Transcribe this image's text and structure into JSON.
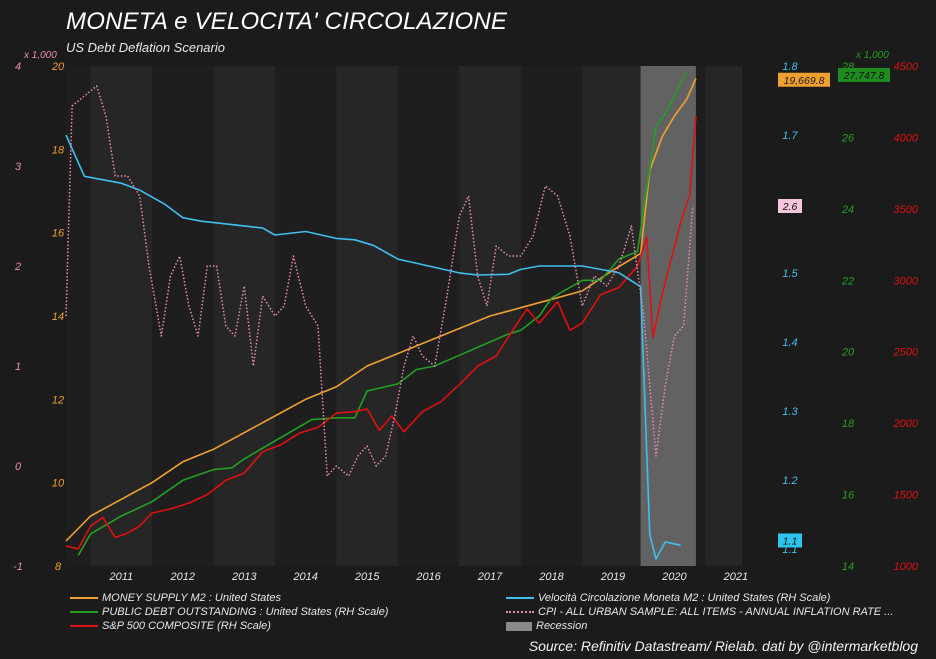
{
  "title": "MONETA e VELOCITA' CIRCOLAZIONE",
  "subtitle": "US Debt Deflation Scenario",
  "source": "Source: Refinitiv Datastream/ Rielab. dati by @intermarketblog",
  "chart_data": {
    "type": "line",
    "x_ticks": [
      "2011",
      "2012",
      "2013",
      "2014",
      "2015",
      "2016",
      "2017",
      "2018",
      "2019",
      "2020",
      "2021"
    ],
    "x_range": [
      2010.6,
      2021.6
    ],
    "recession": {
      "label": "Recession",
      "start": 2019.95,
      "end": 2020.85
    },
    "axes": {
      "cpi": {
        "multiplier": "x 1,000",
        "ticks": [
          "4",
          "3",
          "2",
          "1",
          "0",
          "-1"
        ],
        "range": [
          -1,
          4
        ],
        "color": "#e98bb8"
      },
      "m2": {
        "ticks": [
          "20",
          "18",
          "16",
          "14",
          "12",
          "10",
          "8"
        ],
        "range": [
          8,
          20
        ],
        "color": "#f0a030"
      },
      "velocity": {
        "ticks": [
          "1.8",
          "1.7",
          "1.5",
          "1.4",
          "1.3",
          "1.2",
          "1.1"
        ],
        "range": [
          1.075,
          1.8
        ],
        "color": "#3fbfee"
      },
      "debt": {
        "multiplier": "x 1,000",
        "ticks": [
          "28",
          "26",
          "24",
          "22",
          "20",
          "18",
          "16",
          "14"
        ],
        "range": [
          14,
          28
        ],
        "color": "#22a022"
      },
      "sp500": {
        "ticks": [
          "4500",
          "4000",
          "3500",
          "3000",
          "2500",
          "2000",
          "1500",
          "1000"
        ],
        "range": [
          1000,
          4500
        ],
        "color": "#e01010"
      }
    },
    "badges": {
      "m2": "19,669.8",
      "debt": "27,747.8",
      "cpi": "2.6",
      "velocity": "1.1"
    },
    "series": [
      {
        "key": "m2",
        "name": "MONEY SUPPLY M2 : United States",
        "color": "#f0a030",
        "x": [
          2010.6,
          2011.0,
          2011.5,
          2012.0,
          2012.5,
          2013.0,
          2013.5,
          2014.0,
          2014.5,
          2015.0,
          2015.5,
          2016.0,
          2016.5,
          2017.0,
          2017.5,
          2018.0,
          2018.5,
          2019.0,
          2019.5,
          2019.95,
          2020.1,
          2020.3,
          2020.5,
          2020.7,
          2020.85
        ],
        "y": [
          8.6,
          9.2,
          9.6,
          10.0,
          10.5,
          10.8,
          11.2,
          11.6,
          12.0,
          12.3,
          12.8,
          13.1,
          13.4,
          13.7,
          14.0,
          14.2,
          14.4,
          14.6,
          15.1,
          15.5,
          17.5,
          18.3,
          18.8,
          19.2,
          19.7
        ]
      },
      {
        "key": "debt",
        "name": "PUBLIC DEBT OUTSTANDING : United States (RH Scale)",
        "color": "#22a022",
        "x": [
          2010.8,
          2011.0,
          2011.5,
          2012.0,
          2012.5,
          2013.0,
          2013.3,
          2013.5,
          2014.0,
          2014.3,
          2014.6,
          2015.0,
          2015.3,
          2015.5,
          2016.0,
          2016.3,
          2016.6,
          2017.0,
          2017.4,
          2017.8,
          2018.0,
          2018.3,
          2018.5,
          2019.0,
          2019.3,
          2019.6,
          2019.9,
          2020.0,
          2020.2,
          2020.4,
          2020.6,
          2020.7
        ],
        "y": [
          14.3,
          14.9,
          15.4,
          15.8,
          16.4,
          16.7,
          16.75,
          17.0,
          17.5,
          17.8,
          18.1,
          18.15,
          18.15,
          18.9,
          19.1,
          19.5,
          19.6,
          19.9,
          20.2,
          20.5,
          20.6,
          21.0,
          21.5,
          22.0,
          22.0,
          22.6,
          22.8,
          24.0,
          26.3,
          26.8,
          27.5,
          27.8
        ]
      },
      {
        "key": "sp500",
        "name": "S&P 500 COMPOSITE (RH Scale)",
        "color": "#e01010",
        "x": [
          2010.6,
          2010.8,
          2011.0,
          2011.2,
          2011.4,
          2011.6,
          2011.8,
          2012.0,
          2012.3,
          2012.6,
          2012.9,
          2013.2,
          2013.5,
          2013.8,
          2014.1,
          2014.4,
          2014.7,
          2015.0,
          2015.3,
          2015.5,
          2015.7,
          2015.9,
          2016.1,
          2016.4,
          2016.7,
          2017.0,
          2017.3,
          2017.6,
          2017.9,
          2018.1,
          2018.3,
          2018.6,
          2018.8,
          2019.0,
          2019.3,
          2019.6,
          2019.9,
          2020.05,
          2020.15,
          2020.3,
          2020.45,
          2020.6,
          2020.75,
          2020.85
        ],
        "y": [
          1140,
          1120,
          1280,
          1340,
          1200,
          1230,
          1280,
          1370,
          1400,
          1440,
          1500,
          1600,
          1650,
          1800,
          1850,
          1930,
          1970,
          2070,
          2080,
          2100,
          1950,
          2050,
          1940,
          2080,
          2150,
          2270,
          2400,
          2470,
          2670,
          2800,
          2700,
          2850,
          2650,
          2700,
          2900,
          2950,
          3100,
          3300,
          2600,
          2900,
          3150,
          3400,
          3600,
          4150
        ]
      },
      {
        "key": "velocity",
        "name": "Velocità Circolazione Moneta M2 : United States (RH Scale)",
        "color": "#3fbfee",
        "x": [
          2010.6,
          2010.9,
          2011.5,
          2011.8,
          2012.2,
          2012.5,
          2012.8,
          2013.3,
          2013.8,
          2014.0,
          2014.5,
          2015.0,
          2015.3,
          2015.6,
          2016.0,
          2016.5,
          2017.0,
          2017.3,
          2017.8,
          2018.0,
          2018.3,
          2018.6,
          2019.0,
          2019.3,
          2019.6,
          2019.95,
          2020.1,
          2020.2,
          2020.35,
          2020.6
        ],
        "y": [
          1.7,
          1.64,
          1.63,
          1.62,
          1.6,
          1.58,
          1.575,
          1.57,
          1.565,
          1.555,
          1.56,
          1.55,
          1.548,
          1.54,
          1.52,
          1.51,
          1.5,
          1.497,
          1.498,
          1.505,
          1.51,
          1.51,
          1.51,
          1.505,
          1.5,
          1.48,
          1.12,
          1.085,
          1.11,
          1.105
        ]
      },
      {
        "key": "cpi",
        "name": "CPI - ALL URBAN SAMPLE: ALL ITEMS - ANNUAL INFLATION RATE ...",
        "color": "#e98bb8",
        "x": [
          2010.6,
          2010.7,
          2010.9,
          2011.1,
          2011.25,
          2011.4,
          2011.6,
          2011.8,
          2011.95,
          2012.15,
          2012.3,
          2012.45,
          2012.6,
          2012.75,
          2012.9,
          2013.05,
          2013.2,
          2013.35,
          2013.5,
          2013.65,
          2013.8,
          2014.0,
          2014.15,
          2014.3,
          2014.5,
          2014.7,
          2014.85,
          2015.0,
          2015.2,
          2015.35,
          2015.5,
          2015.65,
          2015.8,
          2015.95,
          2016.1,
          2016.25,
          2016.4,
          2016.6,
          2016.8,
          2017.0,
          2017.15,
          2017.3,
          2017.45,
          2017.6,
          2017.8,
          2018.0,
          2018.2,
          2018.4,
          2018.6,
          2018.8,
          2019.0,
          2019.2,
          2019.4,
          2019.6,
          2019.8,
          2020.0,
          2020.2,
          2020.35,
          2020.5,
          2020.65,
          2020.8
        ],
        "y": [
          1.5,
          3.6,
          3.7,
          3.8,
          3.5,
          2.9,
          2.9,
          2.7,
          2.0,
          1.3,
          1.9,
          2.1,
          1.6,
          1.3,
          2.0,
          2.0,
          1.4,
          1.3,
          1.8,
          1.0,
          1.7,
          1.5,
          1.6,
          2.1,
          1.6,
          1.4,
          -0.1,
          0.0,
          -0.1,
          0.1,
          0.2,
          0.0,
          0.1,
          0.5,
          1.0,
          1.3,
          1.1,
          1.0,
          1.7,
          2.5,
          2.7,
          1.9,
          1.6,
          2.2,
          2.1,
          2.1,
          2.3,
          2.8,
          2.7,
          2.3,
          1.6,
          1.9,
          1.8,
          2.0,
          2.4,
          1.5,
          0.1,
          0.8,
          1.3,
          1.4,
          2.6
        ]
      }
    ],
    "legend": [
      {
        "label": "MONEY SUPPLY M2 : United States",
        "color": "#f0a030",
        "style": "solid"
      },
      {
        "label": "PUBLIC DEBT OUTSTANDING : United States (RH Scale)",
        "color": "#22a022",
        "style": "solid"
      },
      {
        "label": "S&P 500 COMPOSITE (RH Scale)",
        "color": "#e01010",
        "style": "solid"
      },
      {
        "label": "Velocità Circolazione Moneta M2 : United States (RH Scale)",
        "color": "#3fbfee",
        "style": "solid"
      },
      {
        "label": "CPI - ALL URBAN SAMPLE: ALL ITEMS - ANNUAL INFLATION RATE ...",
        "color": "#e98bb8",
        "style": "dotted"
      },
      {
        "label": "Recession",
        "color": "#8a8a8a",
        "style": "box"
      }
    ]
  }
}
